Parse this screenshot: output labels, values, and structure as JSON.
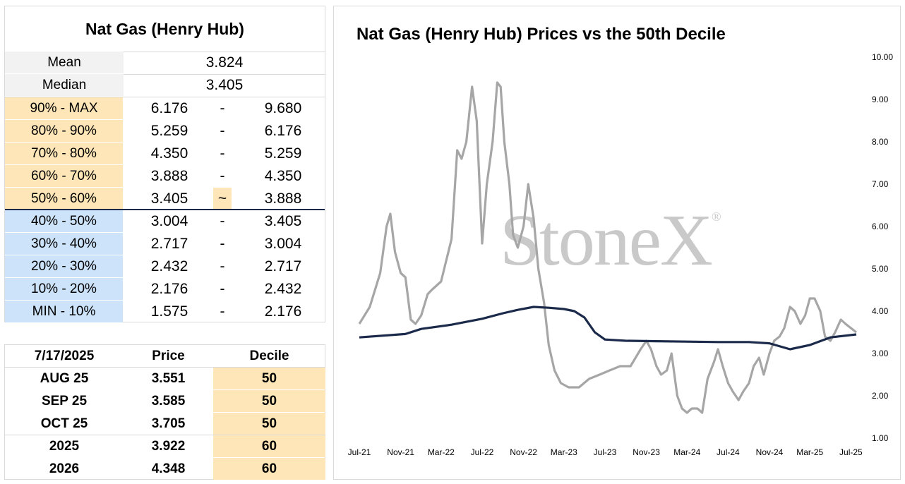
{
  "decile_table": {
    "title": "Nat Gas (Henry Hub)",
    "mean_label": "Mean",
    "mean_value": "3.824",
    "median_label": "Median",
    "median_value": "3.405",
    "rows": [
      {
        "label": "90% - MAX",
        "low": "6.176",
        "sep": "-",
        "high": "9.680"
      },
      {
        "label": "80% - 90%",
        "low": "5.259",
        "sep": "-",
        "high": "6.176"
      },
      {
        "label": "70% - 80%",
        "low": "4.350",
        "sep": "-",
        "high": "5.259"
      },
      {
        "label": "60% - 70%",
        "low": "3.888",
        "sep": "-",
        "high": "4.350"
      },
      {
        "label": "50% - 60%",
        "low": "3.405",
        "sep": "~",
        "high": "3.888"
      },
      {
        "label": "40% - 50%",
        "low": "3.004",
        "sep": "-",
        "high": "3.405"
      },
      {
        "label": "30% - 40%",
        "low": "2.717",
        "sep": "-",
        "high": "3.004"
      },
      {
        "label": "20% - 30%",
        "low": "2.432",
        "sep": "-",
        "high": "2.717"
      },
      {
        "label": "10% - 20%",
        "low": "2.176",
        "sep": "-",
        "high": "2.432"
      },
      {
        "label": "MIN - 10%",
        "low": "1.575",
        "sep": "-",
        "high": "2.176"
      }
    ]
  },
  "futures_table": {
    "headers": [
      "7/17/2025",
      "Price",
      "Decile"
    ],
    "rows": [
      {
        "contract": "AUG 25",
        "price": "3.551",
        "decile": "50"
      },
      {
        "contract": "SEP 25",
        "price": "3.585",
        "decile": "50"
      },
      {
        "contract": "OCT 25",
        "price": "3.705",
        "decile": "50"
      },
      {
        "contract": "2025",
        "price": "3.922",
        "decile": "60"
      },
      {
        "contract": "2026",
        "price": "4.348",
        "decile": "60"
      }
    ]
  },
  "watermark": {
    "text": "StoneX",
    "mark": "®"
  },
  "colors": {
    "price": "#a6a6a6",
    "decile50": "#1b2a4a",
    "highlight": "#ffe6b8",
    "low_band": "#cce3fa"
  },
  "chart_data": {
    "type": "line",
    "title": "Nat Gas (Henry Hub) Prices vs the 50th Decile",
    "xlabel": "",
    "ylabel": "",
    "x_tick_labels": [
      "Jul-21",
      "Nov-21",
      "Mar-22",
      "Jul-22",
      "Nov-22",
      "Mar-23",
      "Jul-23",
      "Nov-23",
      "Mar-24",
      "Jul-24",
      "Nov-24",
      "Mar-25",
      "Jul-25"
    ],
    "y_tick_labels": [
      "1.00",
      "2.00",
      "3.00",
      "4.00",
      "5.00",
      "6.00",
      "7.00",
      "8.00",
      "9.00",
      "10.00"
    ],
    "ylim": [
      1,
      10
    ],
    "y_axis_position": "right",
    "grid": false,
    "legend": "none",
    "series": [
      {
        "role": "price",
        "x": [
          "2021-07-01",
          "2021-08-01",
          "2021-09-01",
          "2021-09-20",
          "2021-10-01",
          "2021-10-15",
          "2021-11-01",
          "2021-11-15",
          "2021-12-01",
          "2021-12-15",
          "2022-01-01",
          "2022-01-20",
          "2022-02-01",
          "2022-03-01",
          "2022-04-01",
          "2022-04-18",
          "2022-05-01",
          "2022-05-15",
          "2022-06-01",
          "2022-06-15",
          "2022-07-01",
          "2022-07-15",
          "2022-08-01",
          "2022-08-15",
          "2022-08-25",
          "2022-09-05",
          "2022-09-20",
          "2022-10-01",
          "2022-10-15",
          "2022-11-01",
          "2022-11-15",
          "2022-12-01",
          "2022-12-15",
          "2023-01-01",
          "2023-01-15",
          "2023-02-01",
          "2023-02-20",
          "2023-03-15",
          "2023-04-15",
          "2023-05-15",
          "2023-06-15",
          "2023-07-15",
          "2023-08-15",
          "2023-09-15",
          "2023-10-15",
          "2023-11-01",
          "2023-11-15",
          "2023-12-01",
          "2023-12-15",
          "2024-01-01",
          "2024-01-15",
          "2024-02-01",
          "2024-02-15",
          "2024-03-01",
          "2024-03-15",
          "2024-04-01",
          "2024-04-15",
          "2024-05-01",
          "2024-05-20",
          "2024-06-01",
          "2024-06-15",
          "2024-07-01",
          "2024-07-15",
          "2024-08-01",
          "2024-08-15",
          "2024-09-01",
          "2024-09-15",
          "2024-10-01",
          "2024-10-15",
          "2024-11-01",
          "2024-11-15",
          "2024-12-01",
          "2024-12-15",
          "2025-01-01",
          "2025-01-15",
          "2025-02-01",
          "2025-02-15",
          "2025-03-01",
          "2025-03-15",
          "2025-04-01",
          "2025-04-15",
          "2025-05-01",
          "2025-05-15",
          "2025-06-01",
          "2025-06-15",
          "2025-07-01",
          "2025-07-17"
        ],
        "values": [
          3.7,
          4.1,
          4.9,
          6.0,
          6.3,
          5.4,
          4.9,
          4.8,
          3.8,
          3.7,
          3.9,
          4.4,
          4.5,
          4.7,
          5.7,
          7.8,
          7.6,
          8.0,
          9.3,
          8.5,
          5.6,
          7.0,
          8.0,
          9.4,
          9.3,
          8.0,
          7.0,
          5.8,
          5.5,
          6.0,
          7.0,
          6.2,
          5.0,
          4.2,
          3.2,
          2.6,
          2.3,
          2.2,
          2.2,
          2.4,
          2.5,
          2.6,
          2.7,
          2.7,
          3.1,
          3.3,
          3.1,
          2.7,
          2.5,
          2.6,
          3.0,
          2.0,
          1.7,
          1.6,
          1.7,
          1.7,
          1.6,
          2.4,
          2.8,
          3.1,
          2.7,
          2.3,
          2.1,
          1.9,
          2.1,
          2.3,
          2.7,
          2.9,
          2.5,
          3.0,
          3.3,
          3.4,
          3.6,
          4.1,
          4.0,
          3.7,
          3.9,
          4.3,
          4.3,
          4.0,
          3.4,
          3.3,
          3.5,
          3.8,
          3.7,
          3.6,
          3.5
        ]
      },
      {
        "role": "decile",
        "x": [
          "2021-07-01",
          "2021-11-15",
          "2022-01-01",
          "2022-04-01",
          "2022-07-01",
          "2022-09-01",
          "2022-10-15",
          "2022-12-01",
          "2023-01-15",
          "2023-03-01",
          "2023-04-01",
          "2023-05-01",
          "2023-06-01",
          "2023-07-01",
          "2023-09-01",
          "2023-12-01",
          "2024-03-01",
          "2024-06-01",
          "2024-09-01",
          "2024-11-01",
          "2025-01-01",
          "2025-03-01",
          "2025-05-01",
          "2025-07-17"
        ],
        "values": [
          3.38,
          3.46,
          3.58,
          3.68,
          3.82,
          3.95,
          4.03,
          4.1,
          4.08,
          4.05,
          4.0,
          3.85,
          3.5,
          3.33,
          3.3,
          3.29,
          3.28,
          3.27,
          3.27,
          3.24,
          3.1,
          3.2,
          3.38,
          3.45
        ]
      }
    ]
  }
}
